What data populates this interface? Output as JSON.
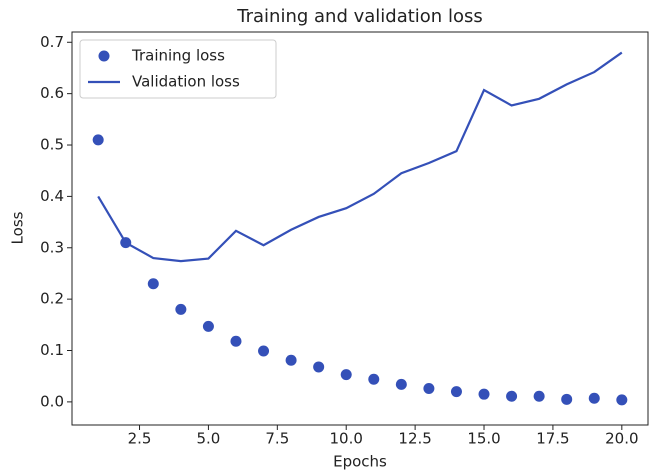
{
  "chart_data": {
    "type": "line",
    "title": "Training and validation loss",
    "x_label": "Epochs",
    "y_label": "Loss",
    "x": [
      1,
      2,
      3,
      4,
      5,
      6,
      7,
      8,
      9,
      10,
      11,
      12,
      13,
      14,
      15,
      16,
      17,
      18,
      19,
      20
    ],
    "series": [
      {
        "name": "Training loss",
        "color": "#3450b8",
        "marker": "dot",
        "values": [
          0.51,
          0.31,
          0.23,
          0.18,
          0.147,
          0.118,
          0.099,
          0.081,
          0.068,
          0.053,
          0.044,
          0.034,
          0.026,
          0.02,
          0.015,
          0.011,
          0.011,
          0.005,
          0.007,
          0.004
        ]
      },
      {
        "name": "Validation loss",
        "color": "#3450b8",
        "marker": "line",
        "values": [
          0.4,
          0.31,
          0.28,
          0.274,
          0.279,
          0.333,
          0.305,
          0.335,
          0.36,
          0.377,
          0.405,
          0.445,
          0.465,
          0.488,
          0.607,
          0.577,
          0.59,
          0.618,
          0.642,
          0.68
        ]
      }
    ],
    "xlim": [
      0.05,
      20.95
    ],
    "xticks": [
      2.5,
      {
        "value": 5,
        "label": "5.0"
      },
      7.5,
      {
        "value": 10,
        "label": "10.0"
      },
      12.5,
      {
        "value": 15,
        "label": "15.0"
      },
      17.5,
      {
        "value": 20,
        "label": "20.0"
      }
    ],
    "ylim": [
      -0.045,
      0.72
    ],
    "yticks": [
      {
        "value": 0,
        "label": "0.0"
      },
      0.1,
      0.2,
      0.3,
      0.4,
      0.5,
      0.6,
      0.7
    ],
    "legend": "upper left",
    "grid": false
  }
}
